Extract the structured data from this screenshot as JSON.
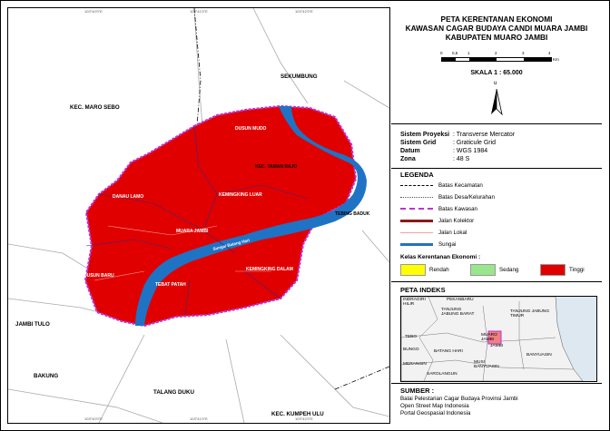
{
  "title_lines": [
    "PETA KERENTANAN EKONOMI",
    "KAWASAN CAGAR BUDAYA CANDI MUARA JAMBI",
    "KABUPATEN MUARO JAMBI"
  ],
  "scale": {
    "ticks": [
      "0",
      "0,5",
      "1",
      "2",
      "3",
      "4"
    ],
    "unit": "Km",
    "text": "SKALA 1 : 65.000"
  },
  "north": "u",
  "projection": [
    {
      "k": "Sistem Proyeksi",
      "v": ": Transverse Mercator"
    },
    {
      "k": "Sistem Grid",
      "v": ": Graticule Grid"
    },
    {
      "k": "Datum",
      "v": ": WGS 1984"
    },
    {
      "k": "Zona",
      "v": ": 48 S"
    }
  ],
  "legend": {
    "title": "LEGENDA",
    "items": [
      "Batas Kecamatan",
      "Batas Desa/Kelurahan",
      "Batas Kawasan",
      "Jalan Kolektor",
      "Jalan Lokal",
      "Sungai"
    ],
    "class_title": "Kelas Kerentanan Ekonomi :",
    "classes": [
      {
        "label": "Rendah",
        "color": "#ffff00"
      },
      {
        "label": "Sedang",
        "color": "#99e68c"
      },
      {
        "label": "Tinggi",
        "color": "#e00000"
      }
    ]
  },
  "index": {
    "title": "PETA INDEKS",
    "labels": [
      "INDRAGIRI HILIR",
      "TANJUNG JABUNG BARAT",
      "TANJUNG JABUNG TIMUR",
      "MUARO JAMBI",
      "JAMBI",
      "TEBO",
      "BUNGO",
      "BATANG HARI",
      "MERANGIN",
      "SAROLANGUN",
      "MUSI BANYUASIN",
      "BANYUASIN",
      "PEKANBARU"
    ]
  },
  "source": {
    "title": "SUMBER :",
    "lines": [
      "Balai Pelestarian Cagar Budaya Provinsi Jambi",
      "Open Street Map Indonesia",
      "Portal Geospasial Indonesia"
    ]
  },
  "map": {
    "outer_labels": [
      "KEC. MARO SEBO",
      "SEKUMBUNG",
      "JAMBI TULO",
      "BAKUNG",
      "TALANG DUKU",
      "KEC. KUMPEH ULU"
    ],
    "village_labels": [
      "DUSUN MUDO",
      "KEC. TAMAN RAJO",
      "KEMINGKING LUAR",
      "TEBAT PATAH",
      "DANAU LAMO",
      "MUARA JAMBI",
      "DUSUN BARU",
      "TEBING BADUK",
      "KEMINGKING DALAM"
    ],
    "river_label": "Sungai Batang Hari",
    "coords": [
      "103°40'0\"E",
      "103°41'0\"E",
      "103°42'0\"E",
      "103°43'0\"E",
      "1°26'0\"S",
      "1°27'0\"S",
      "1°28'0\"S"
    ],
    "region_color": "#e00000",
    "river_color": "#1f73c4",
    "boundary_color": "#c030d0"
  }
}
